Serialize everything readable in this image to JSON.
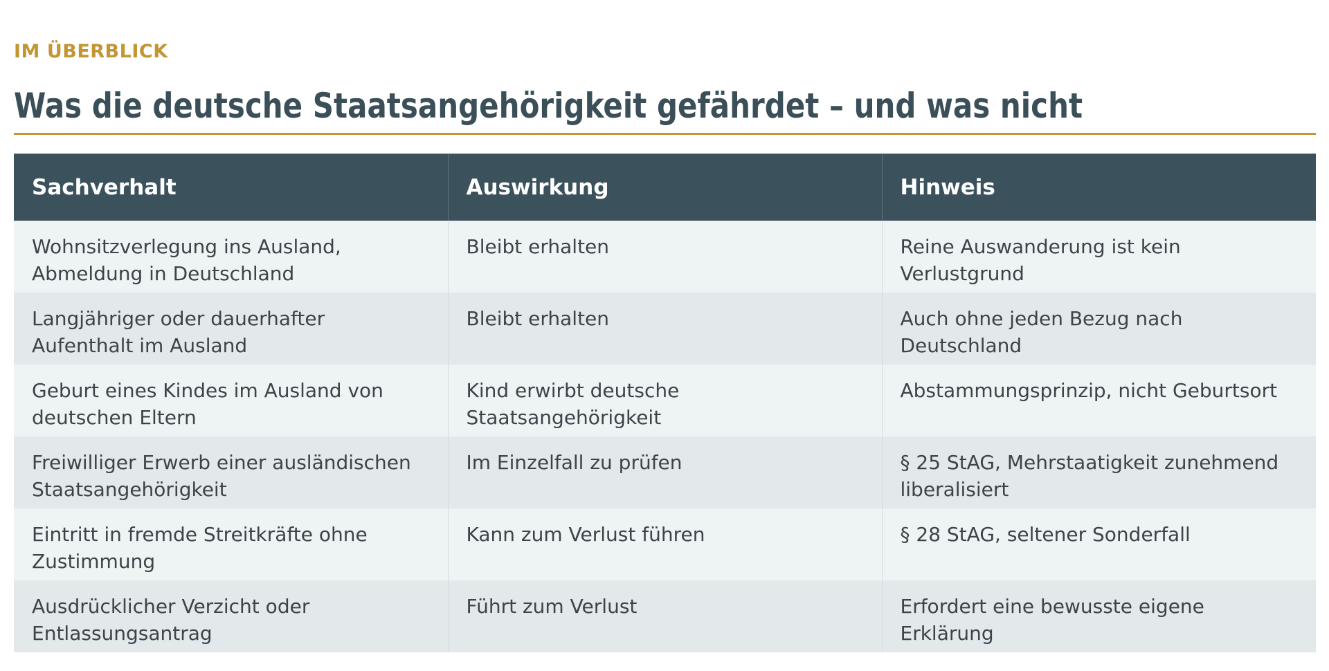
{
  "section": {
    "kicker": "IM ÜBERBLICK",
    "title": "Was die deutsche Staatsangehörigkeit gefährdet – und was nicht"
  },
  "table": {
    "headers": [
      "Sachverhalt",
      "Auswirkung",
      "Hinweis"
    ],
    "rows": [
      [
        "Wohnsitzverlegung ins Ausland, Abmeldung in Deutschland",
        "Bleibt erhalten",
        "Reine Auswanderung ist kein Verlustgrund"
      ],
      [
        "Langjähriger oder dauerhafter Aufenthalt im Ausland",
        "Bleibt erhalten",
        "Auch ohne jeden Bezug nach Deutschland"
      ],
      [
        "Geburt eines Kindes im Ausland von deutschen Eltern",
        "Kind erwirbt deutsche Staatsangehörigkeit",
        "Abstammungsprinzip, nicht Geburtsort"
      ],
      [
        "Freiwilliger Erwerb einer ausländischen Staatsangehörigkeit",
        "Im Einzelfall zu prüfen",
        "§ 25 StAG, Mehrstaatigkeit zunehmend liberalisiert"
      ],
      [
        "Eintritt in fremde Streitkräfte ohne Zustimmung",
        "Kann zum Verlust führen",
        "§ 28 StAG, seltener Sonderfall"
      ],
      [
        "Ausdrücklicher Verzicht oder Entlassungsantrag",
        "Führt zum Verlust",
        "Erfordert eine bewusste eigene Erklärung"
      ]
    ]
  },
  "colors": {
    "accent": "#c39533",
    "header_bg": "#3b525c",
    "row_odd": "#eef3f4",
    "row_even": "#e3e8ea"
  }
}
